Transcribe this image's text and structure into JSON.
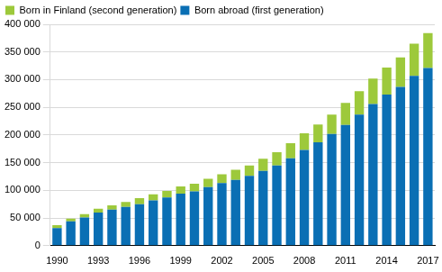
{
  "chart_data": {
    "type": "bar",
    "stacked": true,
    "categories": [
      "1990",
      null,
      null,
      "1993",
      null,
      null,
      "1996",
      null,
      null,
      "1999",
      null,
      null,
      "2002",
      null,
      null,
      "2005",
      null,
      null,
      "2008",
      null,
      null,
      "2011",
      null,
      null,
      "2014",
      null,
      null,
      "2017"
    ],
    "series": [
      {
        "name": "Born abroad (first generation)",
        "color": "#0a6fb4",
        "values": [
          32000,
          44000,
          51000,
          60000,
          65000,
          70000,
          75000,
          82000,
          87000,
          94000,
          98000,
          106000,
          113000,
          119000,
          126000,
          135000,
          145000,
          158000,
          173000,
          187000,
          202000,
          218000,
          237000,
          256000,
          273000,
          287000,
          307000,
          321000
        ]
      },
      {
        "name": "Born in Finland (second generation)",
        "color": "#9dc93b",
        "values": [
          5000,
          5000,
          6000,
          7000,
          8000,
          9000,
          11000,
          11000,
          12000,
          13000,
          14000,
          15000,
          16000,
          18000,
          19000,
          22000,
          24000,
          27000,
          30000,
          32000,
          35000,
          40000,
          42000,
          46000,
          49000,
          53000,
          58000,
          63000
        ]
      }
    ],
    "ylim": [
      0,
      400000
    ],
    "yticks": [
      0,
      {
        "value": 50000,
        "label": "50 000"
      },
      {
        "value": 100000,
        "label": "100 000"
      },
      {
        "value": 150000,
        "label": "150 000"
      },
      {
        "value": 200000,
        "label": "200 000"
      },
      {
        "value": 250000,
        "label": "250 000"
      },
      {
        "value": 300000,
        "label": "300 000"
      },
      {
        "value": 350000,
        "label": "350 000"
      },
      {
        "value": 400000,
        "label": "400 000"
      }
    ],
    "grid": true,
    "legend": "upper left"
  }
}
